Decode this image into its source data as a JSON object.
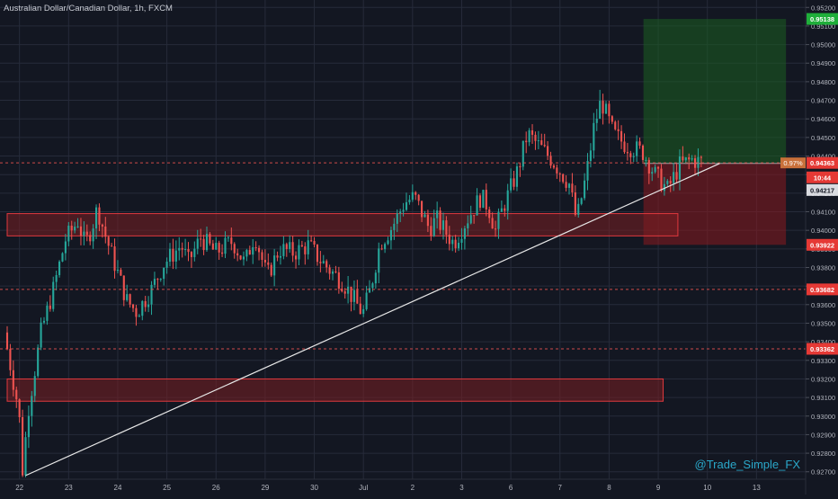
{
  "header": {
    "title": "Australian Dollar/Canadian Dollar, 1h, FXCM"
  },
  "watermark": "@Trade_Simple_FX",
  "colors": {
    "background": "#131722",
    "grid": "#262b3a",
    "axis_text": "#b2b5be",
    "bull": "#26a69a",
    "bear": "#ef5350",
    "zone_fill": "#7a1f22",
    "zone_border": "#e0393e",
    "target_fill": "#1b5e20",
    "stop_fill": "#8b1a1f",
    "trendline": "#e8e8e8",
    "watermark": "#2aa7c9",
    "tag_green": "#1fae3a",
    "tag_red": "#e53935",
    "tag_white": "#d9dbe0",
    "tag_orange": "#c9703a"
  },
  "chart_data": {
    "type": "candlestick",
    "symbol": "Australian Dollar/Canadian Dollar",
    "interval": "1h",
    "source": "FXCM",
    "x_tick_labels": [
      "22",
      "23",
      "24",
      "25",
      "26",
      "29",
      "30",
      "Jul",
      "2",
      "3",
      "6",
      "7",
      "8",
      "9",
      "10",
      "13"
    ],
    "y_ticks": [
      0.927,
      0.928,
      0.929,
      0.93,
      0.931,
      0.932,
      0.933,
      0.934,
      0.935,
      0.936,
      0.937,
      0.938,
      0.939,
      0.94,
      0.941,
      0.942,
      0.943,
      0.944,
      0.945,
      0.946,
      0.947,
      0.948,
      0.949,
      0.95,
      0.951,
      0.952
    ],
    "y_tick_labels": [
      "0.92700",
      "0.92800",
      "0.92900",
      "0.93000",
      "0.93100",
      "0.93200",
      "0.93300",
      "0.93400",
      "0.93500",
      "0.93600",
      "0.93700",
      "0.93800",
      "0.93900",
      "0.94000",
      "0.94100",
      "0.94200",
      "0.94300",
      "0.94400",
      "0.94500",
      "0.94600",
      "0.94700",
      "0.94800",
      "0.94900",
      "0.95000",
      "0.95100",
      "0.95200"
    ],
    "ylim": [
      0.9266,
      0.9524
    ],
    "grid": true,
    "price_path": [
      [
        0.0,
        0.9345
      ],
      [
        0.6,
        0.9303
      ],
      [
        0.75,
        0.9271
      ],
      [
        1.0,
        0.9305
      ],
      [
        1.5,
        0.9345
      ],
      [
        2.0,
        0.9368
      ],
      [
        2.5,
        0.9395
      ],
      [
        3.0,
        0.9405
      ],
      [
        3.3,
        0.9392
      ],
      [
        3.6,
        0.9403
      ],
      [
        3.8,
        0.9412
      ],
      [
        4.1,
        0.9398
      ],
      [
        4.6,
        0.9378
      ],
      [
        5.0,
        0.9362
      ],
      [
        5.4,
        0.9356
      ],
      [
        6.0,
        0.9368
      ],
      [
        6.5,
        0.9382
      ],
      [
        7.2,
        0.9392
      ],
      [
        7.5,
        0.9383
      ],
      [
        8.0,
        0.9396
      ],
      [
        8.6,
        0.9388
      ],
      [
        9.3,
        0.9394
      ],
      [
        9.8,
        0.9382
      ],
      [
        10.2,
        0.9398
      ],
      [
        10.7,
        0.9375
      ],
      [
        11.2,
        0.939
      ],
      [
        11.8,
        0.9388
      ],
      [
        12.4,
        0.9392
      ],
      [
        12.8,
        0.9385
      ],
      [
        13.3,
        0.9378
      ],
      [
        13.8,
        0.9372
      ],
      [
        14.6,
        0.9355
      ],
      [
        14.9,
        0.9368
      ],
      [
        15.3,
        0.9393
      ],
      [
        15.8,
        0.9402
      ],
      [
        16.3,
        0.9415
      ],
      [
        16.7,
        0.9418
      ],
      [
        17.3,
        0.9401
      ],
      [
        17.6,
        0.9406
      ],
      [
        18.3,
        0.9393
      ],
      [
        18.8,
        0.9405
      ],
      [
        19.4,
        0.9418
      ],
      [
        19.7,
        0.9413
      ],
      [
        20.0,
        0.94
      ],
      [
        20.3,
        0.9412
      ],
      [
        20.9,
        0.9432
      ],
      [
        21.3,
        0.9452
      ],
      [
        21.8,
        0.9445
      ],
      [
        22.3,
        0.9438
      ],
      [
        23.0,
        0.9425
      ],
      [
        23.3,
        0.9405
      ],
      [
        23.7,
        0.943
      ],
      [
        24.0,
        0.9455
      ],
      [
        24.3,
        0.947
      ],
      [
        24.8,
        0.9452
      ],
      [
        25.3,
        0.9446
      ],
      [
        26.0,
        0.9442
      ],
      [
        26.5,
        0.943
      ],
      [
        27.0,
        0.9422
      ],
      [
        27.5,
        0.9435
      ],
      [
        28.0,
        0.9438
      ],
      [
        28.3,
        0.9437
      ]
    ],
    "zones": [
      {
        "x0": 0.0,
        "x1": 27.3,
        "y0": 0.9397,
        "y1": 0.9409
      },
      {
        "x0": 0.0,
        "x1": 26.7,
        "y0": 0.9308,
        "y1": 0.932
      }
    ],
    "trendline": {
      "x0": 0.75,
      "y0": 0.9268,
      "x1": 29.0,
      "y1": 0.9436
    },
    "position": {
      "x0": 25.9,
      "x1": 31.7,
      "entry": 0.9436,
      "target": 0.95138,
      "stop": 0.93922,
      "stop_zone_right": 27.3
    },
    "dashed_levels": [
      {
        "y": 0.93682,
        "color": "#ef5350"
      },
      {
        "y": 0.93362,
        "color": "#ef5350"
      },
      {
        "y": 0.94363,
        "color": "#ef5350"
      }
    ],
    "price_tags": [
      {
        "y": 0.95138,
        "label": "0.95138",
        "style": "green"
      },
      {
        "y": 0.94363,
        "label": "0.94363",
        "style": "red"
      },
      {
        "y": 0.94285,
        "label": "10:44",
        "style": "red"
      },
      {
        "y": 0.94217,
        "label": "0.94217",
        "style": "white"
      },
      {
        "y": 0.93922,
        "label": "0.93922",
        "style": "red"
      },
      {
        "y": 0.93682,
        "label": "0.93682",
        "style": "red"
      },
      {
        "y": 0.93362,
        "label": "0.93362",
        "style": "red"
      }
    ],
    "position_label": {
      "y": 0.94363,
      "label": "0.97%"
    },
    "x_range": [
      0,
      32.5
    ]
  }
}
